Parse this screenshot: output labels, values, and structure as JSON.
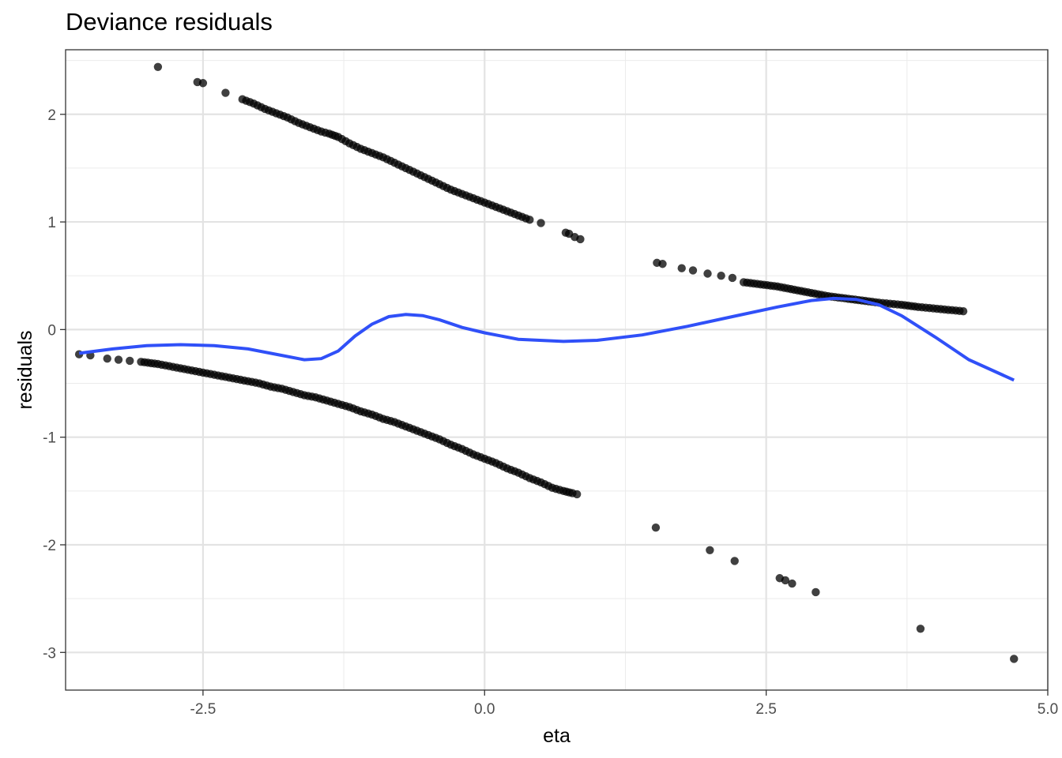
{
  "chart_data": {
    "type": "scatter",
    "title": "Deviance residuals",
    "xlabel": "eta",
    "ylabel": "residuals",
    "xlim": [
      -3.72,
      5.0
    ],
    "ylim": [
      -3.35,
      2.6
    ],
    "x_ticks": [
      -2.5,
      0.0,
      2.5,
      5.0
    ],
    "x_tick_labels": [
      "-2.5",
      "0.0",
      "2.5",
      "5.0"
    ],
    "y_ticks": [
      -3,
      -2,
      -1,
      0,
      1,
      2
    ],
    "y_tick_labels": [
      "-3",
      "-2",
      "-1",
      "0",
      "1",
      "2"
    ],
    "grid": true,
    "legend": "none",
    "point_color": "#000000",
    "smooth_color": "#3050F8",
    "points_upper": [
      [
        -2.9,
        2.44
      ],
      [
        -2.55,
        2.3
      ],
      [
        -2.5,
        2.29
      ],
      [
        -2.3,
        2.2
      ],
      [
        -2.15,
        2.14
      ],
      [
        -2.05,
        2.1
      ],
      [
        -1.95,
        2.05
      ],
      [
        -1.85,
        2.01
      ],
      [
        -1.75,
        1.97
      ],
      [
        -1.65,
        1.92
      ],
      [
        -1.55,
        1.88
      ],
      [
        -1.45,
        1.84
      ],
      [
        -1.38,
        1.82
      ],
      [
        -1.3,
        1.79
      ],
      [
        -1.2,
        1.73
      ],
      [
        -1.1,
        1.68
      ],
      [
        -1.0,
        1.64
      ],
      [
        -0.9,
        1.6
      ],
      [
        -0.8,
        1.55
      ],
      [
        -0.7,
        1.5
      ],
      [
        -0.6,
        1.45
      ],
      [
        -0.5,
        1.4
      ],
      [
        -0.4,
        1.35
      ],
      [
        -0.3,
        1.3
      ],
      [
        -0.2,
        1.26
      ],
      [
        -0.1,
        1.22
      ],
      [
        0.0,
        1.18
      ],
      [
        0.1,
        1.14
      ],
      [
        0.2,
        1.1
      ],
      [
        0.3,
        1.06
      ],
      [
        0.4,
        1.02
      ],
      [
        0.5,
        0.99
      ],
      [
        0.72,
        0.9
      ],
      [
        0.75,
        0.89
      ],
      [
        0.8,
        0.86
      ],
      [
        0.85,
        0.84
      ]
    ],
    "points_upper_right": [
      [
        1.53,
        0.62
      ],
      [
        1.58,
        0.61
      ],
      [
        1.75,
        0.57
      ],
      [
        1.85,
        0.55
      ],
      [
        1.98,
        0.52
      ],
      [
        2.1,
        0.5
      ],
      [
        2.2,
        0.48
      ],
      [
        2.3,
        0.44
      ],
      [
        2.45,
        0.42
      ],
      [
        2.6,
        0.4
      ],
      [
        2.75,
        0.37
      ],
      [
        2.9,
        0.34
      ],
      [
        3.05,
        0.31
      ],
      [
        3.2,
        0.29
      ],
      [
        3.35,
        0.27
      ],
      [
        3.5,
        0.25
      ],
      [
        3.6,
        0.24
      ],
      [
        3.7,
        0.23
      ],
      [
        3.85,
        0.21
      ],
      [
        3.95,
        0.2
      ],
      [
        4.05,
        0.19
      ],
      [
        4.15,
        0.18
      ],
      [
        4.25,
        0.17
      ]
    ],
    "points_lower": [
      [
        -3.6,
        -0.23
      ],
      [
        -3.5,
        -0.24
      ],
      [
        -3.35,
        -0.27
      ],
      [
        -3.25,
        -0.28
      ],
      [
        -3.15,
        -0.29
      ],
      [
        -3.05,
        -0.3
      ],
      [
        -2.9,
        -0.32
      ],
      [
        -2.8,
        -0.34
      ],
      [
        -2.7,
        -0.36
      ],
      [
        -2.6,
        -0.38
      ],
      [
        -2.5,
        -0.4
      ],
      [
        -2.4,
        -0.42
      ],
      [
        -2.3,
        -0.44
      ],
      [
        -2.2,
        -0.46
      ],
      [
        -2.1,
        -0.48
      ],
      [
        -2.0,
        -0.5
      ],
      [
        -1.9,
        -0.53
      ],
      [
        -1.8,
        -0.55
      ],
      [
        -1.7,
        -0.58
      ],
      [
        -1.6,
        -0.61
      ],
      [
        -1.5,
        -0.63
      ],
      [
        -1.4,
        -0.66
      ],
      [
        -1.3,
        -0.69
      ],
      [
        -1.2,
        -0.72
      ],
      [
        -1.1,
        -0.76
      ],
      [
        -1.0,
        -0.79
      ],
      [
        -0.9,
        -0.83
      ],
      [
        -0.8,
        -0.86
      ],
      [
        -0.7,
        -0.9
      ],
      [
        -0.6,
        -0.94
      ],
      [
        -0.5,
        -0.98
      ],
      [
        -0.4,
        -1.02
      ],
      [
        -0.3,
        -1.07
      ],
      [
        -0.2,
        -1.11
      ],
      [
        -0.1,
        -1.16
      ],
      [
        0.0,
        -1.2
      ],
      [
        0.1,
        -1.24
      ],
      [
        0.2,
        -1.29
      ],
      [
        0.3,
        -1.33
      ],
      [
        0.4,
        -1.38
      ],
      [
        0.5,
        -1.42
      ],
      [
        0.6,
        -1.47
      ],
      [
        0.7,
        -1.5
      ],
      [
        0.78,
        -1.52
      ],
      [
        0.82,
        -1.53
      ]
    ],
    "points_lower_right": [
      [
        1.52,
        -1.84
      ],
      [
        2.0,
        -2.05
      ],
      [
        2.22,
        -2.15
      ],
      [
        2.62,
        -2.31
      ],
      [
        2.67,
        -2.33
      ],
      [
        2.73,
        -2.36
      ],
      [
        2.94,
        -2.44
      ],
      [
        3.87,
        -2.78
      ],
      [
        4.7,
        -3.06
      ]
    ],
    "smooth_curve": [
      [
        -3.6,
        -0.22
      ],
      [
        -3.3,
        -0.18
      ],
      [
        -3.0,
        -0.15
      ],
      [
        -2.7,
        -0.14
      ],
      [
        -2.4,
        -0.15
      ],
      [
        -2.1,
        -0.18
      ],
      [
        -1.8,
        -0.24
      ],
      [
        -1.6,
        -0.28
      ],
      [
        -1.45,
        -0.27
      ],
      [
        -1.3,
        -0.2
      ],
      [
        -1.15,
        -0.06
      ],
      [
        -1.0,
        0.05
      ],
      [
        -0.85,
        0.12
      ],
      [
        -0.7,
        0.14
      ],
      [
        -0.55,
        0.13
      ],
      [
        -0.4,
        0.09
      ],
      [
        -0.2,
        0.02
      ],
      [
        0.0,
        -0.03
      ],
      [
        0.3,
        -0.09
      ],
      [
        0.7,
        -0.11
      ],
      [
        1.0,
        -0.1
      ],
      [
        1.4,
        -0.05
      ],
      [
        1.8,
        0.03
      ],
      [
        2.2,
        0.12
      ],
      [
        2.6,
        0.21
      ],
      [
        2.9,
        0.27
      ],
      [
        3.1,
        0.29
      ],
      [
        3.3,
        0.28
      ],
      [
        3.5,
        0.23
      ],
      [
        3.7,
        0.13
      ],
      [
        4.0,
        -0.07
      ],
      [
        4.3,
        -0.28
      ],
      [
        4.7,
        -0.47
      ]
    ]
  }
}
